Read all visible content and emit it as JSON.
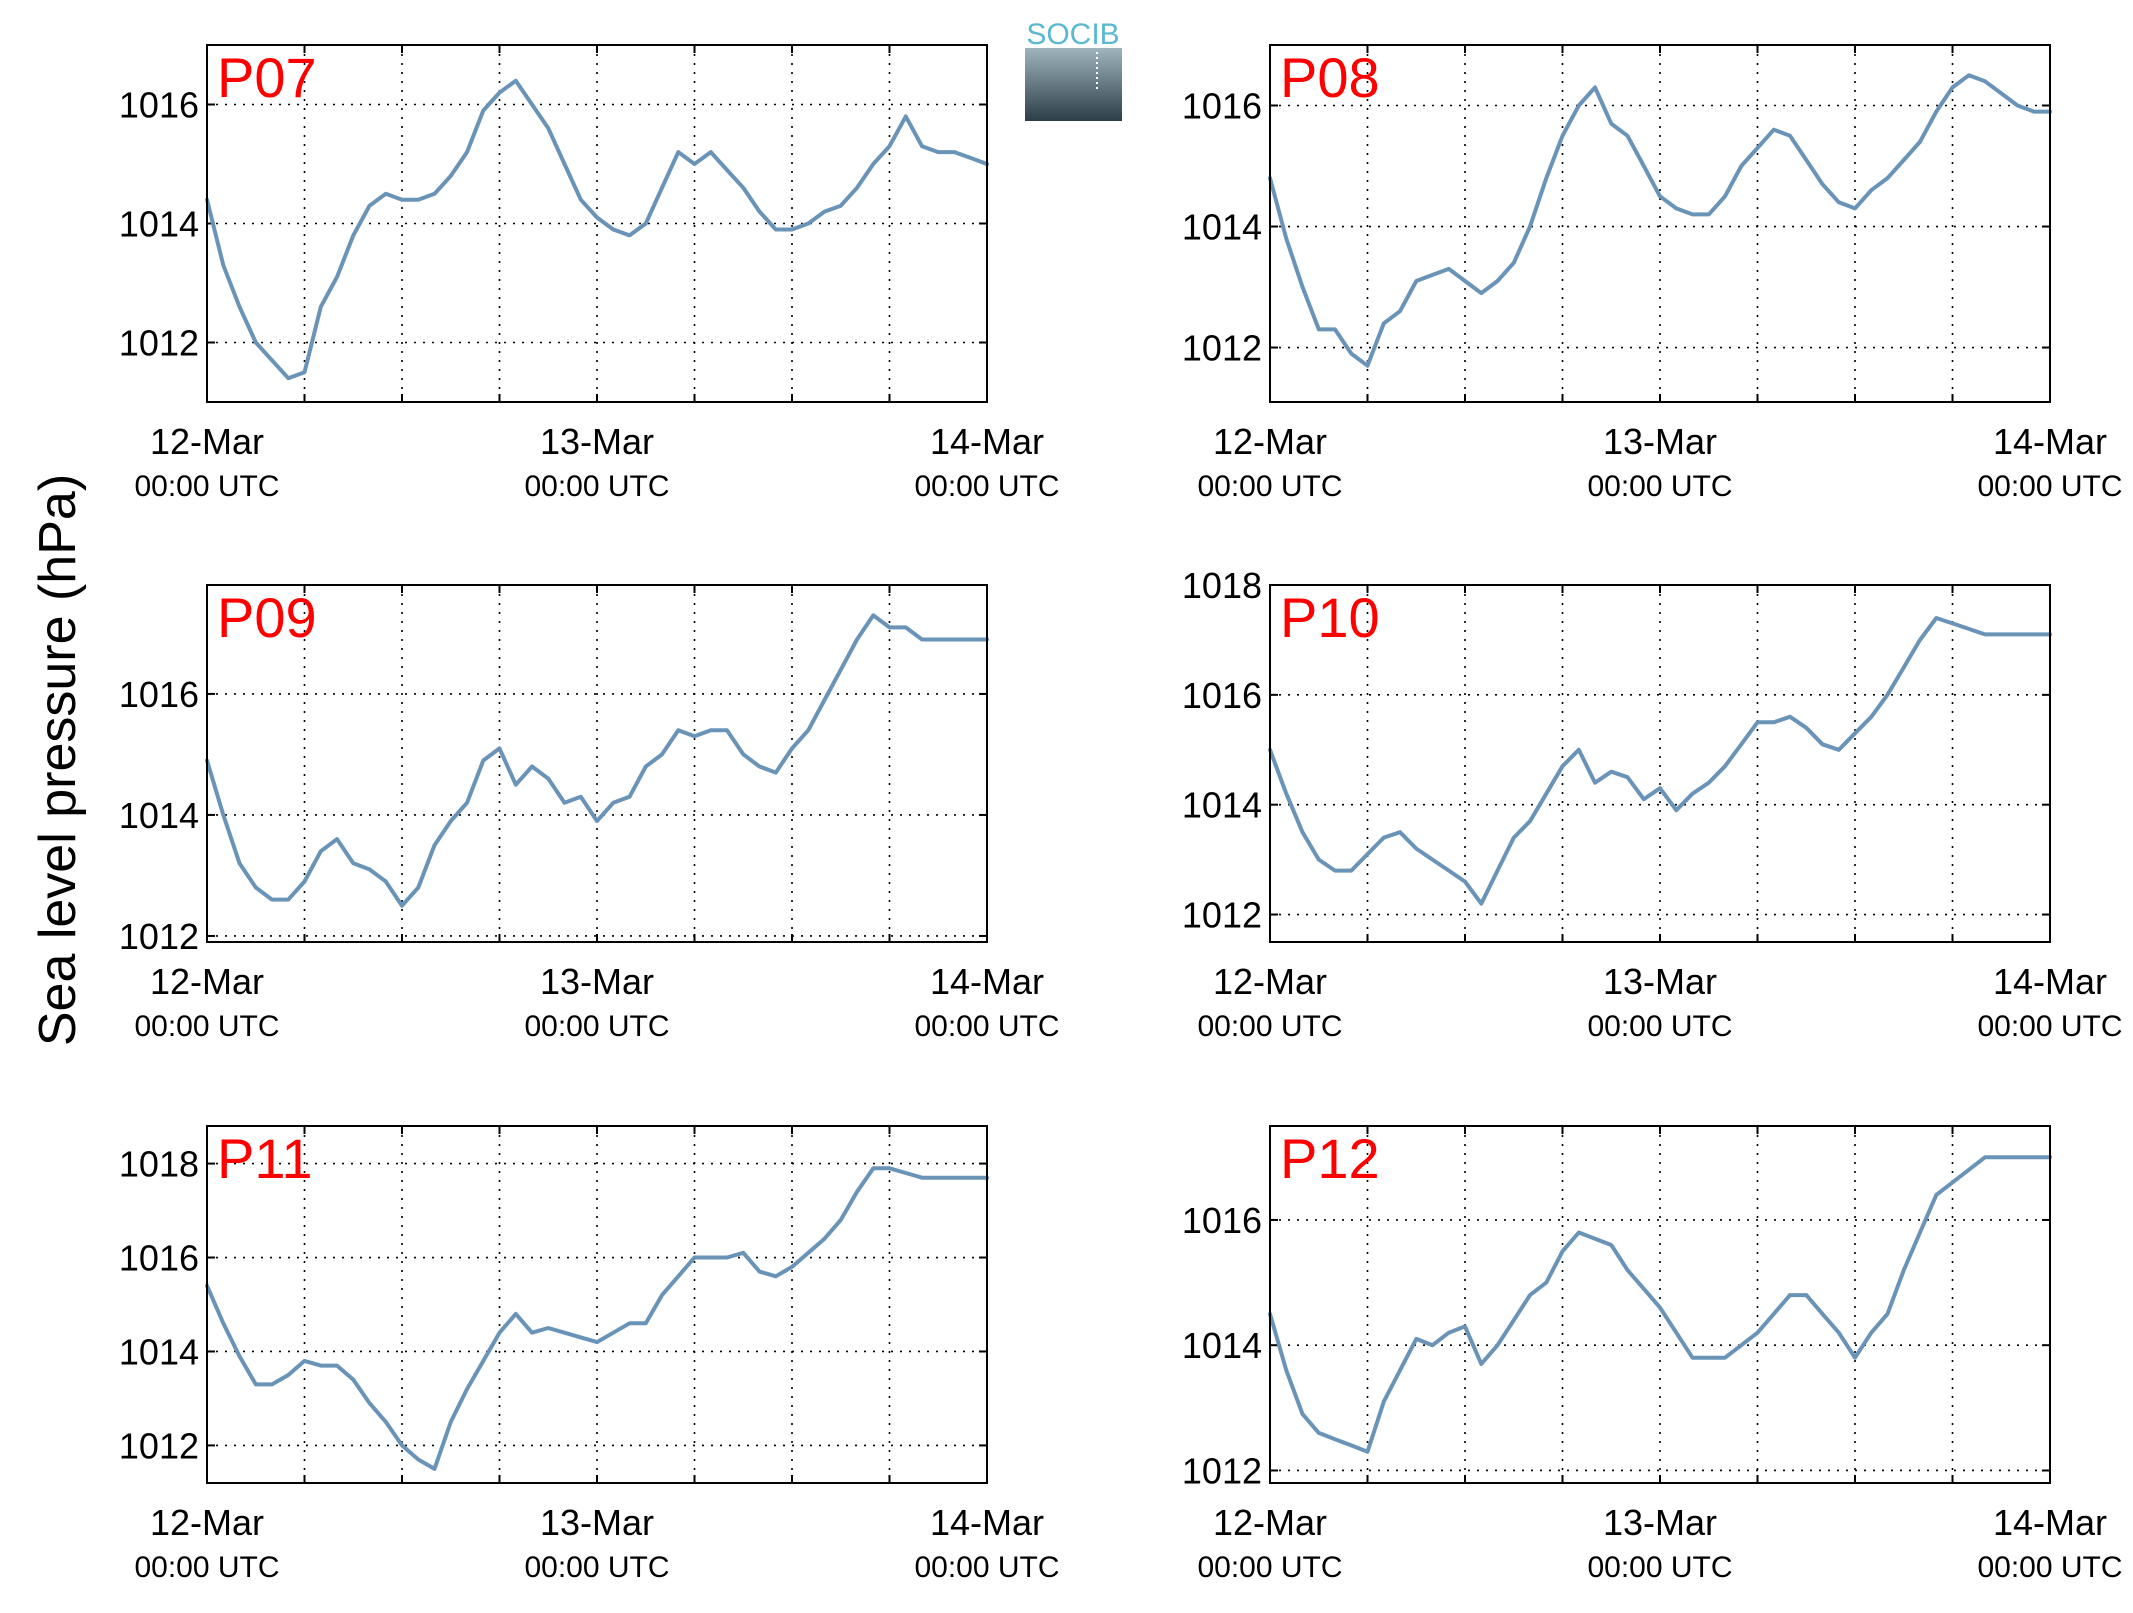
{
  "figure": {
    "ylabel": "Sea level pressure (hPa)"
  },
  "logo": {
    "text": "SOCIB",
    "gradient_top": "#9fb4bd",
    "gradient_bottom": "#2c3e48",
    "text_color": "#5ab8cf"
  },
  "colors": {
    "line": "#6a93b8",
    "panel_label": "#ff0000",
    "axis": "#000000"
  },
  "chart_data": [
    {
      "type": "line",
      "title": "P07",
      "x_ticks": [
        "12-Mar",
        "13-Mar",
        "14-Mar"
      ],
      "x_tick_sublabels": [
        "00:00 UTC",
        "00:00 UTC",
        "00:00 UTC"
      ],
      "x_hours_range": [
        0,
        48
      ],
      "ylim": [
        1011,
        1017
      ],
      "yticks": [
        1012,
        1014,
        1016
      ],
      "grid": true,
      "series": [
        {
          "x": [
            0,
            1,
            2,
            3,
            4,
            5,
            6,
            7,
            8,
            9,
            10,
            11,
            12,
            13,
            14,
            15,
            16,
            17,
            18,
            19,
            20,
            21,
            22,
            23,
            24,
            25,
            26,
            27,
            28,
            29,
            30,
            31,
            32,
            33,
            34,
            35,
            36,
            37,
            38,
            39,
            40,
            41,
            42,
            43,
            44,
            45,
            46,
            47,
            48
          ],
          "values": [
            1014.4,
            1013.3,
            1012.6,
            1012.0,
            1011.7,
            1011.4,
            1011.5,
            1012.6,
            1013.1,
            1013.8,
            1014.3,
            1014.5,
            1014.4,
            1014.4,
            1014.5,
            1014.8,
            1015.2,
            1015.9,
            1016.2,
            1016.4,
            1016.0,
            1015.6,
            1015.0,
            1014.4,
            1014.1,
            1013.9,
            1013.8,
            1014.0,
            1014.6,
            1015.2,
            1015.0,
            1015.2,
            1014.9,
            1014.6,
            1014.2,
            1013.9,
            1013.9,
            1014.0,
            1014.2,
            1014.3,
            1014.6,
            1015.0,
            1015.3,
            1015.8,
            1015.3,
            1015.2,
            1015.2,
            1015.1,
            1015.0
          ]
        }
      ]
    },
    {
      "type": "line",
      "title": "P08",
      "x_ticks": [
        "12-Mar",
        "13-Mar",
        "14-Mar"
      ],
      "x_tick_sublabels": [
        "00:00 UTC",
        "00:00 UTC",
        "00:00 UTC"
      ],
      "x_hours_range": [
        0,
        48
      ],
      "ylim": [
        1011.1,
        1017
      ],
      "yticks": [
        1012,
        1014,
        1016
      ],
      "grid": true,
      "series": [
        {
          "x": [
            0,
            1,
            2,
            3,
            4,
            5,
            6,
            7,
            8,
            9,
            10,
            11,
            12,
            13,
            14,
            15,
            16,
            17,
            18,
            19,
            20,
            21,
            22,
            23,
            24,
            25,
            26,
            27,
            28,
            29,
            30,
            31,
            32,
            33,
            34,
            35,
            36,
            37,
            38,
            39,
            40,
            41,
            42,
            43,
            44,
            45,
            46,
            47,
            48
          ],
          "values": [
            1014.8,
            1013.8,
            1013.0,
            1012.3,
            1012.3,
            1011.9,
            1011.7,
            1012.4,
            1012.6,
            1013.1,
            1013.2,
            1013.3,
            1013.1,
            1012.9,
            1013.1,
            1013.4,
            1014.0,
            1014.8,
            1015.5,
            1016.0,
            1016.3,
            1015.7,
            1015.5,
            1015.0,
            1014.5,
            1014.3,
            1014.2,
            1014.2,
            1014.5,
            1015.0,
            1015.3,
            1015.6,
            1015.5,
            1015.1,
            1014.7,
            1014.4,
            1014.3,
            1014.6,
            1014.8,
            1015.1,
            1015.4,
            1015.9,
            1016.3,
            1016.5,
            1016.4,
            1016.2,
            1016.0,
            1015.9,
            1015.9
          ]
        }
      ]
    },
    {
      "type": "line",
      "title": "P09",
      "x_ticks": [
        "12-Mar",
        "13-Mar",
        "14-Mar"
      ],
      "x_tick_sublabels": [
        "00:00 UTC",
        "00:00 UTC",
        "00:00 UTC"
      ],
      "x_hours_range": [
        0,
        48
      ],
      "ylim": [
        1011.9,
        1017.8
      ],
      "yticks": [
        1012,
        1014,
        1016
      ],
      "grid": true,
      "series": [
        {
          "x": [
            0,
            1,
            2,
            3,
            4,
            5,
            6,
            7,
            8,
            9,
            10,
            11,
            12,
            13,
            14,
            15,
            16,
            17,
            18,
            19,
            20,
            21,
            22,
            23,
            24,
            25,
            26,
            27,
            28,
            29,
            30,
            31,
            32,
            33,
            34,
            35,
            36,
            37,
            38,
            39,
            40,
            41,
            42,
            43,
            44,
            45,
            46,
            47,
            48
          ],
          "values": [
            1014.9,
            1014.0,
            1013.2,
            1012.8,
            1012.6,
            1012.6,
            1012.9,
            1013.4,
            1013.6,
            1013.2,
            1013.1,
            1012.9,
            1012.5,
            1012.8,
            1013.5,
            1013.9,
            1014.2,
            1014.9,
            1015.1,
            1014.5,
            1014.8,
            1014.6,
            1014.2,
            1014.3,
            1013.9,
            1014.2,
            1014.3,
            1014.8,
            1015.0,
            1015.4,
            1015.3,
            1015.4,
            1015.4,
            1015.0,
            1014.8,
            1014.7,
            1015.1,
            1015.4,
            1015.9,
            1016.4,
            1016.9,
            1017.3,
            1017.1,
            1017.1,
            1016.9,
            1016.9,
            1016.9,
            1016.9,
            1016.9
          ]
        }
      ]
    },
    {
      "type": "line",
      "title": "P10",
      "x_ticks": [
        "12-Mar",
        "13-Mar",
        "14-Mar"
      ],
      "x_tick_sublabels": [
        "00:00 UTC",
        "00:00 UTC",
        "00:00 UTC"
      ],
      "x_hours_range": [
        0,
        48
      ],
      "ylim": [
        1011.5,
        1018
      ],
      "yticks": [
        1012,
        1014,
        1016,
        1018
      ],
      "grid": true,
      "series": [
        {
          "x": [
            0,
            1,
            2,
            3,
            4,
            5,
            6,
            7,
            8,
            9,
            10,
            11,
            12,
            13,
            14,
            15,
            16,
            17,
            18,
            19,
            20,
            21,
            22,
            23,
            24,
            25,
            26,
            27,
            28,
            29,
            30,
            31,
            32,
            33,
            34,
            35,
            36,
            37,
            38,
            39,
            40,
            41,
            42,
            43,
            44,
            45,
            46,
            47,
            48
          ],
          "values": [
            1015.0,
            1014.2,
            1013.5,
            1013.0,
            1012.8,
            1012.8,
            1013.1,
            1013.4,
            1013.5,
            1013.2,
            1013.0,
            1012.8,
            1012.6,
            1012.2,
            1012.8,
            1013.4,
            1013.7,
            1014.2,
            1014.7,
            1015.0,
            1014.4,
            1014.6,
            1014.5,
            1014.1,
            1014.3,
            1013.9,
            1014.2,
            1014.4,
            1014.7,
            1015.1,
            1015.5,
            1015.5,
            1015.6,
            1015.4,
            1015.1,
            1015.0,
            1015.3,
            1015.6,
            1016.0,
            1016.5,
            1017.0,
            1017.4,
            1017.3,
            1017.2,
            1017.1,
            1017.1,
            1017.1,
            1017.1,
            1017.1
          ]
        }
      ]
    },
    {
      "type": "line",
      "title": "P11",
      "x_ticks": [
        "12-Mar",
        "13-Mar",
        "14-Mar"
      ],
      "x_tick_sublabels": [
        "00:00 UTC",
        "00:00 UTC",
        "00:00 UTC"
      ],
      "x_hours_range": [
        0,
        48
      ],
      "ylim": [
        1011.2,
        1018.8
      ],
      "yticks": [
        1012,
        1014,
        1016,
        1018
      ],
      "grid": true,
      "series": [
        {
          "x": [
            0,
            1,
            2,
            3,
            4,
            5,
            6,
            7,
            8,
            9,
            10,
            11,
            12,
            13,
            14,
            15,
            16,
            17,
            18,
            19,
            20,
            21,
            22,
            23,
            24,
            25,
            26,
            27,
            28,
            29,
            30,
            31,
            32,
            33,
            34,
            35,
            36,
            37,
            38,
            39,
            40,
            41,
            42,
            43,
            44,
            45,
            46,
            47,
            48
          ],
          "values": [
            1015.4,
            1014.6,
            1013.9,
            1013.3,
            1013.3,
            1013.5,
            1013.8,
            1013.7,
            1013.7,
            1013.4,
            1012.9,
            1012.5,
            1012.0,
            1011.7,
            1011.5,
            1012.5,
            1013.2,
            1013.8,
            1014.4,
            1014.8,
            1014.4,
            1014.5,
            1014.4,
            1014.3,
            1014.2,
            1014.4,
            1014.6,
            1014.6,
            1015.2,
            1015.6,
            1016.0,
            1016.0,
            1016.0,
            1016.1,
            1015.7,
            1015.6,
            1015.8,
            1016.1,
            1016.4,
            1016.8,
            1017.4,
            1017.9,
            1017.9,
            1017.8,
            1017.7,
            1017.7,
            1017.7,
            1017.7,
            1017.7
          ]
        }
      ]
    },
    {
      "type": "line",
      "title": "P12",
      "x_ticks": [
        "12-Mar",
        "13-Mar",
        "14-Mar"
      ],
      "x_tick_sublabels": [
        "00:00 UTC",
        "00:00 UTC",
        "00:00 UTC"
      ],
      "x_hours_range": [
        0,
        48
      ],
      "ylim": [
        1011.8,
        1017.5
      ],
      "yticks": [
        1012,
        1014,
        1016
      ],
      "grid": true,
      "series": [
        {
          "x": [
            0,
            1,
            2,
            3,
            4,
            5,
            6,
            7,
            8,
            9,
            10,
            11,
            12,
            13,
            14,
            15,
            16,
            17,
            18,
            19,
            20,
            21,
            22,
            23,
            24,
            25,
            26,
            27,
            28,
            29,
            30,
            31,
            32,
            33,
            34,
            35,
            36,
            37,
            38,
            39,
            40,
            41,
            42,
            43,
            44,
            45,
            46,
            47,
            48
          ],
          "values": [
            1014.5,
            1013.6,
            1012.9,
            1012.6,
            1012.5,
            1012.4,
            1012.3,
            1013.1,
            1013.6,
            1014.1,
            1014.0,
            1014.2,
            1014.3,
            1013.7,
            1014.0,
            1014.4,
            1014.8,
            1015.0,
            1015.5,
            1015.8,
            1015.7,
            1015.6,
            1015.2,
            1014.9,
            1014.6,
            1014.2,
            1013.8,
            1013.8,
            1013.8,
            1014.0,
            1014.2,
            1014.5,
            1014.8,
            1014.8,
            1014.5,
            1014.2,
            1013.8,
            1014.2,
            1014.5,
            1015.2,
            1015.8,
            1016.4,
            1016.6,
            1016.8,
            1017.0,
            1017.0,
            1017.0,
            1017.0,
            1017.0
          ]
        }
      ]
    }
  ]
}
